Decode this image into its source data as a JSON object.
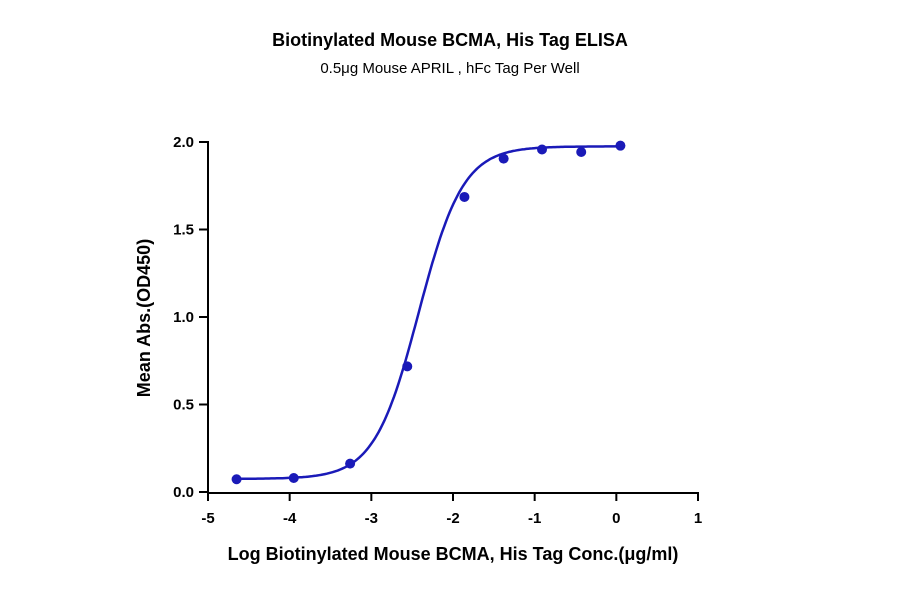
{
  "chart_data": {
    "type": "scatter",
    "title": "Biotinylated Mouse BCMA, His Tag ELISA",
    "subtitle": "0.5μg Mouse APRIL , hFc Tag Per Well",
    "xlabel": "Log Biotinylated Mouse BCMA, His Tag Conc.(μg/ml)",
    "ylabel": "Mean Abs.(OD450)",
    "xlim": [
      -5,
      1
    ],
    "ylim": [
      0,
      2.0
    ],
    "xticks": [
      "-5",
      "-4",
      "-3",
      "-2",
      "-1",
      "0",
      "1"
    ],
    "yticks": [
      "0.0",
      "0.5",
      "1.0",
      "1.5",
      "2.0"
    ],
    "grid": false,
    "fit": "sigmoidal curve",
    "color": "#1a1ab8",
    "x": [
      -4.65,
      -3.95,
      -3.26,
      -2.56,
      -1.86,
      -1.38,
      -0.91,
      -0.43,
      0.05
    ],
    "y": [
      0.073,
      0.08,
      0.162,
      0.718,
      1.686,
      1.905,
      1.957,
      1.943,
      1.979
    ]
  }
}
